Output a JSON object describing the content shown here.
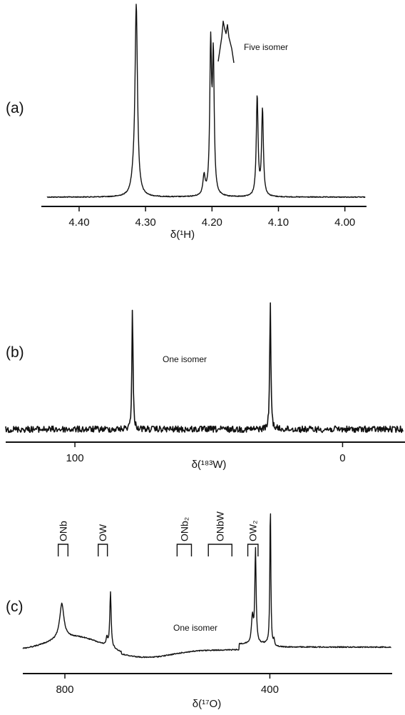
{
  "chart_data": [
    {
      "type": "line",
      "panel": "(a)",
      "annotation": "Five isomer",
      "xlabel": "δ(¹H)",
      "xlim": [
        4.43,
        3.99
      ],
      "ticks": [
        "4.40",
        "4.30",
        "4.20",
        "4.10",
        "4.00"
      ],
      "tick_values": [
        4.4,
        4.3,
        4.2,
        4.1,
        4.0
      ],
      "series": [
        {
          "peaks": [
            {
              "x": 4.314,
              "height": 0.98,
              "width": 0.0022
            },
            {
              "x": 4.318,
              "height": 0.06,
              "width": 0.004
            },
            {
              "x": 4.212,
              "height": 0.1,
              "width": 0.002
            },
            {
              "x": 4.202,
              "height": 0.76,
              "width": 0.0016
            },
            {
              "x": 4.198,
              "height": 0.7,
              "width": 0.0016
            },
            {
              "x": 4.132,
              "height": 0.52,
              "width": 0.0016
            },
            {
              "x": 4.124,
              "height": 0.45,
              "width": 0.0016
            }
          ]
        }
      ],
      "inset": {
        "x": 4.18,
        "peaks_relative": [
          0.94,
          0.86
        ]
      }
    },
    {
      "type": "line",
      "panel": "(b)",
      "annotation": "One isomer",
      "xlabel": "δ(¹⁸³W)",
      "xlim": [
        112,
        -10
      ],
      "ticks": [
        "100",
        "0"
      ],
      "tick_values": [
        100,
        0
      ],
      "series": [
        {
          "peaks": [
            {
              "x": 78.5,
              "height": 0.95,
              "width": 0.25
            },
            {
              "x": 27.0,
              "height": 1.0,
              "width": 0.25
            }
          ]
        }
      ]
    },
    {
      "type": "line",
      "panel": "(c)",
      "annotation": "One isomer",
      "xlabel": "δ(¹⁷O)",
      "xlim": [
        832,
        370
      ],
      "ticks": [
        "800",
        "400"
      ],
      "tick_values": [
        800,
        400
      ],
      "brackets": [
        {
          "label": "ONb",
          "x_from": 813,
          "x_to": 794
        },
        {
          "label": "OW",
          "x_from": 735,
          "x_to": 717
        },
        {
          "label": "ONb₂",
          "x_from": 581,
          "x_to": 553
        },
        {
          "label": "ONbW",
          "x_from": 520,
          "x_to": 474
        },
        {
          "label": "OW₂",
          "x_from": 443,
          "x_to": 423
        }
      ],
      "series": [
        {
          "peaks": [
            {
              "x": 806,
              "height": 0.24,
              "width": 5
            },
            {
              "x": 718,
              "height": 0.06,
              "width": 1.5
            },
            {
              "x": 711,
              "height": 0.38,
              "width": 1.6
            },
            {
              "x": 434,
              "height": 0.18,
              "width": 2.2
            },
            {
              "x": 428,
              "height": 0.64,
              "width": 1.5
            },
            {
              "x": 399,
              "height": 0.99,
              "width": 1.1
            },
            {
              "x": 392,
              "height": 0.04,
              "width": 1.5
            }
          ]
        }
      ]
    }
  ]
}
